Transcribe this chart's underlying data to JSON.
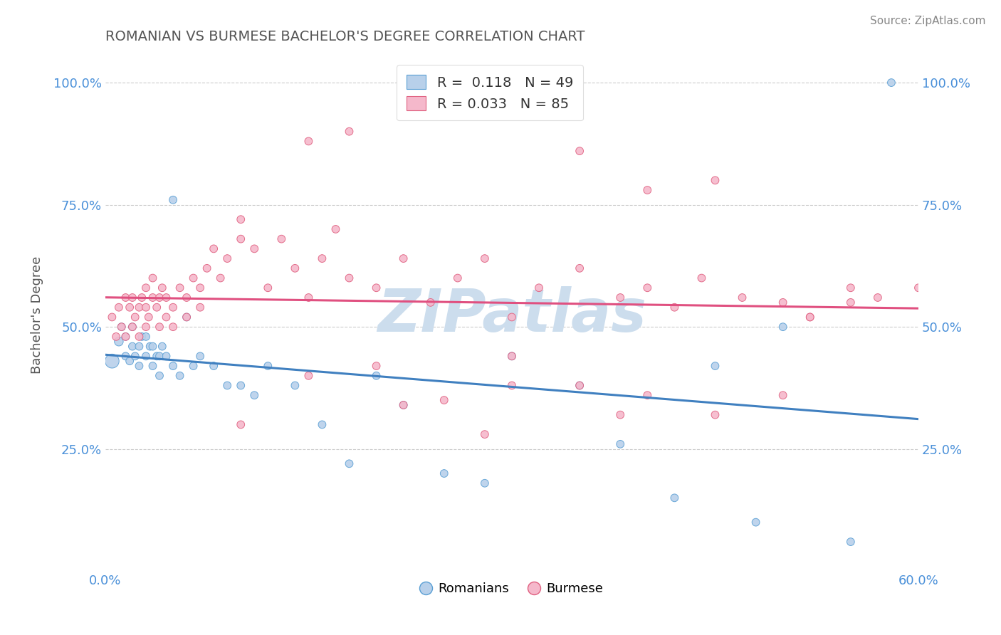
{
  "title": "ROMANIAN VS BURMESE BACHELOR'S DEGREE CORRELATION CHART",
  "source_text": "Source: ZipAtlas.com",
  "ylabel": "Bachelor's Degree",
  "xlim": [
    0.0,
    0.6
  ],
  "ylim": [
    0.0,
    1.05
  ],
  "ytick_values": [
    0.25,
    0.5,
    0.75,
    1.0
  ],
  "legend_blue_label": "R =  0.118   N = 49",
  "legend_pink_label": "R = 0.033   N = 85",
  "legend_romanians": "Romanians",
  "legend_burmese": "Burmese",
  "blue_fill": "#b8d0ea",
  "pink_fill": "#f5b8cb",
  "blue_edge": "#5a9fd4",
  "pink_edge": "#e06080",
  "blue_line": "#4080c0",
  "pink_line": "#e05080",
  "title_color": "#555555",
  "watermark_color": "#ccdded",
  "watermark_text": "ZIPatlas",
  "blue_x": [
    0.005,
    0.01,
    0.012,
    0.015,
    0.015,
    0.018,
    0.02,
    0.02,
    0.022,
    0.025,
    0.025,
    0.027,
    0.03,
    0.03,
    0.033,
    0.035,
    0.035,
    0.038,
    0.04,
    0.04,
    0.042,
    0.045,
    0.05,
    0.05,
    0.055,
    0.06,
    0.065,
    0.07,
    0.08,
    0.09,
    0.1,
    0.11,
    0.12,
    0.14,
    0.16,
    0.18,
    0.2,
    0.22,
    0.25,
    0.28,
    0.3,
    0.35,
    0.38,
    0.42,
    0.45,
    0.48,
    0.5,
    0.55,
    0.58
  ],
  "blue_y": [
    0.43,
    0.47,
    0.5,
    0.44,
    0.48,
    0.43,
    0.46,
    0.5,
    0.44,
    0.42,
    0.46,
    0.48,
    0.44,
    0.48,
    0.46,
    0.42,
    0.46,
    0.44,
    0.4,
    0.44,
    0.46,
    0.44,
    0.76,
    0.42,
    0.4,
    0.52,
    0.42,
    0.44,
    0.42,
    0.38,
    0.38,
    0.36,
    0.42,
    0.38,
    0.3,
    0.22,
    0.4,
    0.34,
    0.2,
    0.18,
    0.44,
    0.38,
    0.26,
    0.15,
    0.42,
    0.1,
    0.5,
    0.06,
    1.0
  ],
  "blue_sizes": [
    200,
    80,
    60,
    60,
    60,
    60,
    60,
    60,
    60,
    60,
    60,
    60,
    60,
    60,
    60,
    60,
    60,
    60,
    60,
    60,
    60,
    60,
    60,
    60,
    60,
    60,
    60,
    60,
    60,
    60,
    60,
    60,
    60,
    60,
    60,
    60,
    60,
    60,
    60,
    60,
    60,
    60,
    60,
    60,
    60,
    60,
    60,
    60,
    60
  ],
  "pink_x": [
    0.005,
    0.008,
    0.01,
    0.012,
    0.015,
    0.015,
    0.018,
    0.02,
    0.02,
    0.022,
    0.025,
    0.025,
    0.027,
    0.03,
    0.03,
    0.03,
    0.032,
    0.035,
    0.035,
    0.038,
    0.04,
    0.04,
    0.042,
    0.045,
    0.045,
    0.05,
    0.05,
    0.055,
    0.06,
    0.06,
    0.065,
    0.07,
    0.07,
    0.075,
    0.08,
    0.085,
    0.09,
    0.1,
    0.1,
    0.11,
    0.12,
    0.13,
    0.14,
    0.15,
    0.16,
    0.17,
    0.18,
    0.2,
    0.22,
    0.24,
    0.26,
    0.28,
    0.3,
    0.32,
    0.35,
    0.38,
    0.4,
    0.42,
    0.44,
    0.47,
    0.5,
    0.52,
    0.55,
    0.57,
    0.6,
    0.3,
    0.35,
    0.15,
    0.4,
    0.45,
    0.25,
    0.2,
    0.35,
    0.4,
    0.5,
    0.55,
    0.18,
    0.3,
    0.22,
    0.1,
    0.28,
    0.38,
    0.15,
    0.45,
    0.52
  ],
  "pink_y": [
    0.52,
    0.48,
    0.54,
    0.5,
    0.56,
    0.48,
    0.54,
    0.5,
    0.56,
    0.52,
    0.48,
    0.54,
    0.56,
    0.5,
    0.54,
    0.58,
    0.52,
    0.56,
    0.6,
    0.54,
    0.5,
    0.56,
    0.58,
    0.52,
    0.56,
    0.5,
    0.54,
    0.58,
    0.52,
    0.56,
    0.6,
    0.54,
    0.58,
    0.62,
    0.66,
    0.6,
    0.64,
    0.68,
    0.72,
    0.66,
    0.58,
    0.68,
    0.62,
    0.56,
    0.64,
    0.7,
    0.6,
    0.58,
    0.64,
    0.55,
    0.6,
    0.64,
    0.52,
    0.58,
    0.62,
    0.56,
    0.58,
    0.54,
    0.6,
    0.56,
    0.55,
    0.52,
    0.58,
    0.56,
    0.58,
    0.44,
    0.38,
    0.4,
    0.36,
    0.32,
    0.35,
    0.42,
    0.86,
    0.78,
    0.36,
    0.55,
    0.9,
    0.38,
    0.34,
    0.3,
    0.28,
    0.32,
    0.88,
    0.8,
    0.52
  ],
  "pink_sizes": [
    60,
    60,
    60,
    60,
    60,
    60,
    60,
    60,
    60,
    60,
    60,
    60,
    60,
    60,
    60,
    60,
    60,
    60,
    60,
    60,
    60,
    60,
    60,
    60,
    60,
    60,
    60,
    60,
    60,
    60,
    60,
    60,
    60,
    60,
    60,
    60,
    60,
    60,
    60,
    60,
    60,
    60,
    60,
    60,
    60,
    60,
    60,
    60,
    60,
    60,
    60,
    60,
    60,
    60,
    60,
    60,
    60,
    60,
    60,
    60,
    60,
    60,
    60,
    60,
    60,
    60,
    60,
    60,
    60,
    60,
    60,
    60,
    60,
    60,
    60,
    60,
    60,
    60,
    60,
    60,
    60,
    60,
    60,
    60,
    60
  ]
}
